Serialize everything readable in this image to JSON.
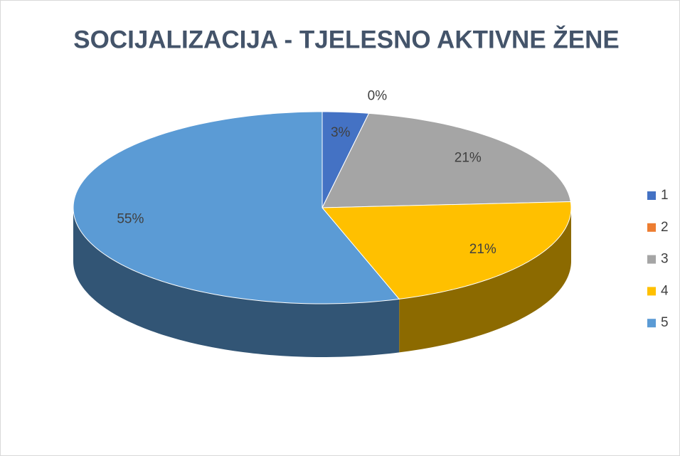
{
  "chart_data": {
    "type": "pie",
    "title": "SOCIJALIZACIJA - TJELESNO AKTIVNE ŽENE",
    "categories": [
      "1",
      "2",
      "3",
      "4",
      "5"
    ],
    "values": [
      3,
      0,
      21,
      21,
      55
    ],
    "value_labels": [
      "3%",
      "0%",
      "21%",
      "21%",
      "55%"
    ],
    "colors": [
      "#4472c4",
      "#ed7d31",
      "#a5a5a5",
      "#ffc000",
      "#5b9bd5"
    ],
    "legend": "right"
  }
}
